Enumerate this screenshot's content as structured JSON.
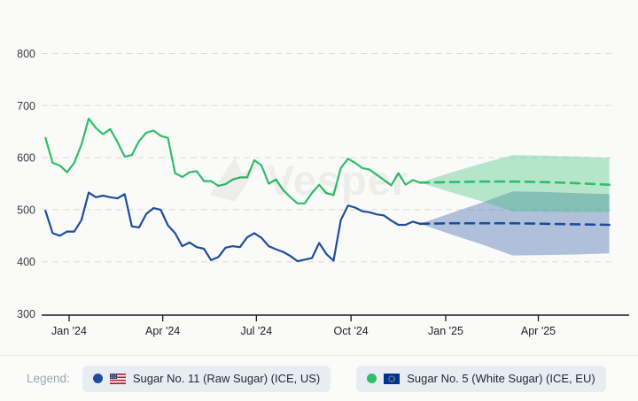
{
  "page": {
    "background": "#fafaf8"
  },
  "watermark": {
    "text": "Vesper"
  },
  "legend": {
    "label": "Legend:",
    "items": [
      {
        "name": "Sugar No. 11 (Raw Sugar) (ICE, US)",
        "color": "#1d4e9e",
        "flag": "us"
      },
      {
        "name": "Sugar No. 5 (White Sugar) (ICE, EU)",
        "color": "#2dbe68",
        "flag": "eu"
      }
    ]
  },
  "chart_data": {
    "type": "line",
    "title": "",
    "xlabel": "",
    "ylabel": "",
    "ylim": [
      300,
      800
    ],
    "yticks": [
      300,
      400,
      500,
      600,
      700,
      800
    ],
    "grid": "horizontal-dashed",
    "legend_position": "bottom",
    "xticks": [
      {
        "label": "Jan '24",
        "date": "2024-01-01"
      },
      {
        "label": "Apr '24",
        "date": "2024-04-01"
      },
      {
        "label": "Jul '24",
        "date": "2024-07-01"
      },
      {
        "label": "Oct '24",
        "date": "2024-10-01"
      },
      {
        "label": "Jan '25",
        "date": "2025-01-01"
      },
      {
        "label": "Apr '25",
        "date": "2025-04-01"
      }
    ],
    "dates": [
      "2023-12-09",
      "2023-12-16",
      "2023-12-23",
      "2023-12-30",
      "2024-01-06",
      "2024-01-13",
      "2024-01-20",
      "2024-01-27",
      "2024-02-03",
      "2024-02-10",
      "2024-02-17",
      "2024-02-24",
      "2024-03-02",
      "2024-03-09",
      "2024-03-16",
      "2024-03-23",
      "2024-03-30",
      "2024-04-06",
      "2024-04-13",
      "2024-04-20",
      "2024-04-27",
      "2024-05-04",
      "2024-05-11",
      "2024-05-18",
      "2024-05-25",
      "2024-06-01",
      "2024-06-08",
      "2024-06-15",
      "2024-06-22",
      "2024-06-29",
      "2024-07-06",
      "2024-07-13",
      "2024-07-20",
      "2024-07-27",
      "2024-08-03",
      "2024-08-10",
      "2024-08-17",
      "2024-08-24",
      "2024-08-31",
      "2024-09-07",
      "2024-09-14",
      "2024-09-21",
      "2024-09-28",
      "2024-10-05",
      "2024-10-12",
      "2024-10-19",
      "2024-10-26",
      "2024-11-02",
      "2024-11-09",
      "2024-11-16",
      "2024-11-23",
      "2024-11-30",
      "2024-12-07"
    ],
    "series": [
      {
        "name": "Sugar No. 11 (Raw Sugar) (ICE, US)",
        "color": "#1d4e9e",
        "values": [
          498,
          455,
          450,
          458,
          458,
          480,
          533,
          524,
          527,
          524,
          522,
          530,
          468,
          466,
          492,
          503,
          500,
          470,
          455,
          430,
          437,
          428,
          425,
          403,
          409,
          427,
          430,
          428,
          447,
          455,
          446,
          430,
          424,
          419,
          411,
          401,
          404,
          407,
          436,
          415,
          402,
          480,
          508,
          504,
          497,
          495,
          491,
          489,
          479,
          471,
          471,
          477,
          473
        ]
      },
      {
        "name": "Sugar No. 5 (White Sugar) (ICE, EU)",
        "color": "#2dbe68",
        "values": [
          638,
          590,
          585,
          572,
          590,
          625,
          675,
          657,
          645,
          655,
          630,
          602,
          605,
          632,
          648,
          652,
          642,
          638,
          570,
          563,
          572,
          574,
          555,
          555,
          546,
          549,
          558,
          562,
          562,
          595,
          585,
          550,
          558,
          538,
          524,
          512,
          512,
          532,
          548,
          532,
          528,
          580,
          598,
          590,
          580,
          577,
          567,
          557,
          547,
          570,
          548,
          557,
          552
        ]
      }
    ],
    "forecast": {
      "dates": [
        "2024-12-07",
        "2025-01-07",
        "2025-02-07",
        "2025-03-07",
        "2025-04-07",
        "2025-05-07",
        "2025-06-09"
      ],
      "series": [
        {
          "name": "Sugar No. 11 (Raw Sugar) (ICE, US) forecast",
          "color": "#1d4e9e",
          "band_fill": "rgba(27,77,161,0.33)",
          "mid": [
            473,
            474,
            474,
            474,
            473,
            472,
            471
          ],
          "upper": [
            473,
            494,
            515,
            535,
            534,
            532,
            530
          ],
          "lower": [
            473,
            452,
            432,
            412,
            413,
            414,
            416
          ]
        },
        {
          "name": "Sugar No. 5 (White Sugar) (ICE, EU) forecast",
          "color": "#2dbe68",
          "band_fill": "rgba(45,190,105,0.33)",
          "mid": [
            552,
            553,
            554,
            554,
            553,
            551,
            548
          ],
          "upper": [
            552,
            572,
            590,
            605,
            604,
            602,
            600
          ],
          "lower": [
            552,
            533,
            515,
            497,
            496,
            495,
            495
          ]
        }
      ]
    }
  }
}
